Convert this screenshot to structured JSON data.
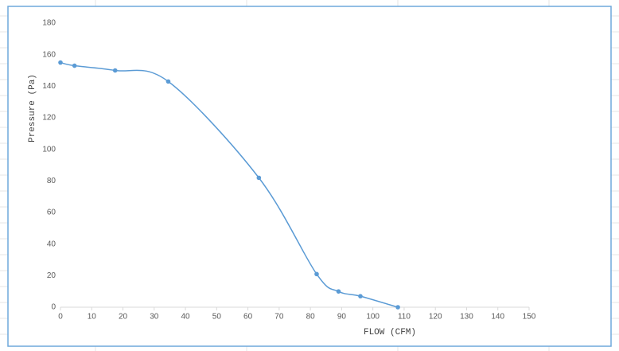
{
  "chart_data": {
    "type": "line",
    "x_label": "FLOW (CFM)",
    "y_label": "Pressure (Pa)",
    "x": [
      0,
      4.5,
      17.5,
      34.5,
      63.5,
      82,
      89,
      96,
      108
    ],
    "series": [
      {
        "name": "Pressure",
        "color": "#5b9bd5",
        "values": [
          155,
          153,
          150,
          143,
          82,
          21,
          10,
          7,
          0
        ]
      }
    ],
    "xlim": [
      0,
      150
    ],
    "xticks": [
      0,
      10,
      20,
      30,
      40,
      50,
      60,
      70,
      80,
      90,
      100,
      110,
      120,
      130,
      140,
      150
    ],
    "ylim": [
      0,
      180
    ],
    "yticks": [
      0,
      20,
      40,
      60,
      80,
      100,
      120,
      140,
      160,
      180
    ],
    "grid": false,
    "smooth": true
  }
}
